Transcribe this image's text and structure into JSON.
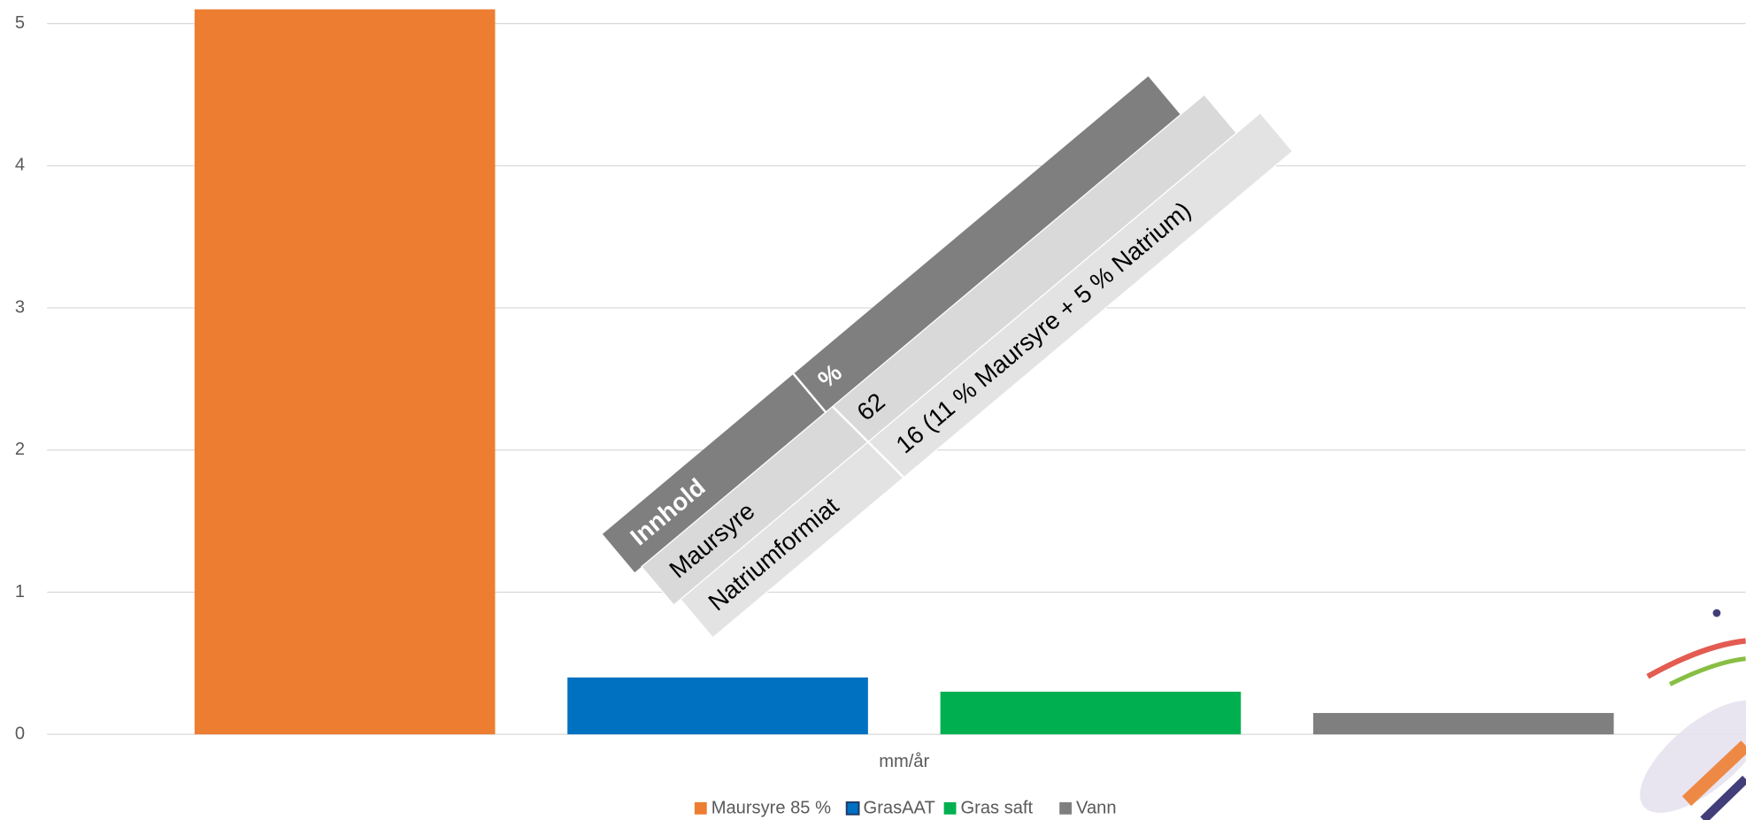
{
  "chart_data": {
    "type": "bar",
    "categories": [
      "mm/år"
    ],
    "series": [
      {
        "name": "Maursyre 85 %",
        "color": "#ed7d31",
        "values": [
          5.1
        ]
      },
      {
        "name": "GrasAAT",
        "color": "#0070c0",
        "values": [
          0.4
        ]
      },
      {
        "name": "Gras saft",
        "color": "#00b050",
        "values": [
          0.3
        ]
      },
      {
        "name": "Vann",
        "color": "#7f7f7f",
        "values": [
          0.15
        ]
      }
    ],
    "ylim": [
      0,
      5.15
    ],
    "yticks": [
      0,
      1,
      2,
      3,
      4,
      5
    ],
    "grid": true,
    "legend": "bottom"
  },
  "table": {
    "header": [
      "Innhold",
      "%"
    ],
    "rows": [
      [
        "Maursyre",
        "62"
      ],
      [
        "Natriumformiat",
        "16 (11 % Maursyre + 5 % Natrium)"
      ]
    ]
  }
}
